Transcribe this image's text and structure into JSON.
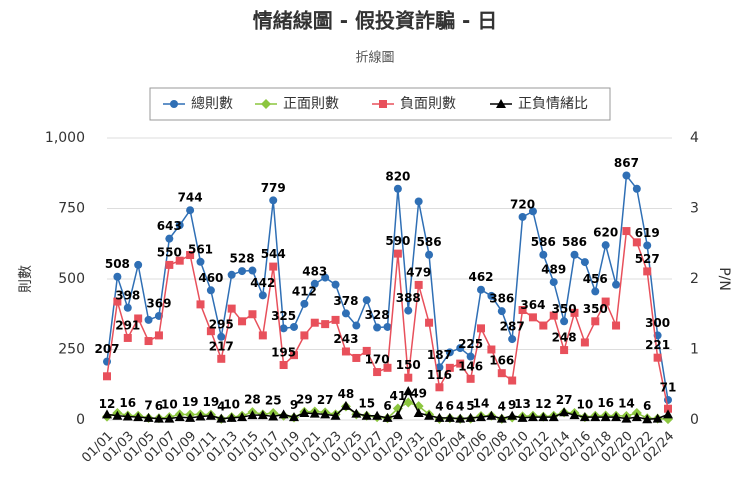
{
  "chart_data": {
    "type": "line",
    "title": "情緒線圖 - 假投資詐騙 - 日",
    "subtitle": "折線圖",
    "y_label": "則數",
    "y2_label": "P/N",
    "categories": [
      "01/01",
      null,
      "01/03",
      null,
      "01/05",
      null,
      "01/07",
      null,
      "01/09",
      null,
      "01/11",
      null,
      "01/13",
      null,
      "01/15",
      null,
      "01/17",
      null,
      "01/19",
      null,
      "01/21",
      null,
      "01/23",
      null,
      "01/25",
      null,
      "01/27",
      null,
      "01/29",
      null,
      "01/31",
      null,
      "02/02",
      null,
      "02/04",
      null,
      "02/06",
      null,
      "02/08",
      null,
      "02/10",
      null,
      "02/12",
      null,
      "02/14",
      null,
      "02/16",
      null,
      "02/18",
      null,
      "02/20",
      null,
      "02/22",
      null,
      "02/24"
    ],
    "ylim": [
      0,
      1000
    ],
    "yticks": [
      0,
      250,
      500,
      750,
      {
        "value": 1000,
        "label": "1,000"
      }
    ],
    "y2lim": [
      0,
      4
    ],
    "y2ticks": [
      0,
      1,
      2,
      3,
      4
    ],
    "grid": true,
    "legend": "top",
    "series": [
      {
        "name": "總則數",
        "color": "#2f6fb5",
        "marker": "circle",
        "values": [
          207,
          508,
          398,
          550,
          355,
          369,
          643,
          691,
          744,
          561,
          460,
          295,
          515,
          528,
          530,
          442,
          779,
          325,
          330,
          412,
          483,
          505,
          480,
          378,
          335,
          425,
          328,
          330,
          820,
          388,
          775,
          586,
          187,
          240,
          255,
          225,
          462,
          440,
          386,
          287,
          720,
          740,
          586,
          489,
          350,
          586,
          560,
          456,
          620,
          480,
          867,
          820,
          619,
          300,
          71
        ],
        "value_labels": [
          "207",
          "508",
          "398",
          null,
          null,
          "369",
          "643",
          null,
          "744",
          "561",
          "460",
          "295",
          null,
          "528",
          null,
          "442",
          "779",
          "325",
          null,
          "412",
          "483",
          null,
          null,
          "378",
          null,
          null,
          "328",
          null,
          "820",
          "388",
          null,
          "586",
          "187",
          null,
          null,
          "225",
          "462",
          null,
          "386",
          "287",
          "720",
          null,
          "586",
          "489",
          "350",
          "586",
          null,
          "456",
          "620",
          null,
          "867",
          null,
          "619",
          "300",
          "71"
        ]
      },
      {
        "name": "正面則數",
        "color": "#8cc63f",
        "marker": "diamond",
        "values": [
          12,
          25,
          16,
          15,
          7,
          6,
          10,
          20,
          19,
          20,
          19,
          4,
          10,
          15,
          28,
          20,
          25,
          15,
          9,
          29,
          30,
          27,
          20,
          48,
          20,
          15,
          10,
          6,
          41,
          62,
          49,
          20,
          4,
          6,
          4,
          5,
          14,
          15,
          4,
          9,
          13,
          15,
          12,
          15,
          27,
          25,
          10,
          15,
          16,
          15,
          14,
          25,
          6,
          5,
          3
        ],
        "value_labels": [
          "12",
          null,
          "16",
          null,
          "7",
          "6",
          "10",
          null,
          "19",
          null,
          "19",
          "4",
          "10",
          null,
          "28",
          null,
          "25",
          null,
          "9",
          "29",
          null,
          "27",
          null,
          "48",
          null,
          "15",
          null,
          "6",
          "41",
          null,
          "49",
          null,
          "4",
          "6",
          "4",
          "5",
          "14",
          null,
          "4",
          "9",
          "13",
          null,
          "12",
          null,
          "27",
          null,
          "10",
          null,
          "16",
          null,
          "14",
          null,
          "6",
          null,
          null
        ]
      },
      {
        "name": "負面則數",
        "color": "#e8505b",
        "marker": "square",
        "values": [
          155,
          420,
          291,
          360,
          280,
          300,
          550,
          565,
          585,
          410,
          315,
          217,
          395,
          350,
          375,
          300,
          544,
          195,
          230,
          300,
          345,
          340,
          355,
          243,
          220,
          245,
          170,
          185,
          590,
          150,
          479,
          345,
          116,
          185,
          200,
          146,
          325,
          250,
          166,
          140,
          390,
          364,
          335,
          370,
          248,
          380,
          275,
          350,
          420,
          335,
          670,
          630,
          527,
          221,
          40
        ],
        "value_labels": [
          null,
          null,
          "291",
          null,
          null,
          null,
          "550",
          null,
          null,
          null,
          null,
          "217",
          null,
          null,
          null,
          null,
          "544",
          "195",
          null,
          null,
          null,
          null,
          null,
          "243",
          null,
          null,
          "170",
          null,
          "590",
          "150",
          "479",
          null,
          "116",
          null,
          null,
          "146",
          null,
          null,
          "166",
          null,
          null,
          "364",
          null,
          null,
          "248",
          null,
          null,
          "350",
          null,
          null,
          null,
          null,
          "527",
          "221",
          null
        ]
      },
      {
        "name": "正負情緒比",
        "color": "#000000",
        "marker": "triangle",
        "axis": "y2",
        "values": [
          0.08,
          0.06,
          0.05,
          0.04,
          0.03,
          0.02,
          0.02,
          0.04,
          0.03,
          0.05,
          0.06,
          0.02,
          0.03,
          0.04,
          0.07,
          0.07,
          0.05,
          0.08,
          0.04,
          0.1,
          0.09,
          0.08,
          0.06,
          0.2,
          0.09,
          0.06,
          0.06,
          0.03,
          0.07,
          0.41,
          0.1,
          0.06,
          0.03,
          0.03,
          0.02,
          0.03,
          0.04,
          0.06,
          0.02,
          0.06,
          0.03,
          0.04,
          0.04,
          0.04,
          0.11,
          0.07,
          0.04,
          0.04,
          0.04,
          0.04,
          0.02,
          0.04,
          0.01,
          0.02,
          0.08
        ]
      }
    ]
  }
}
